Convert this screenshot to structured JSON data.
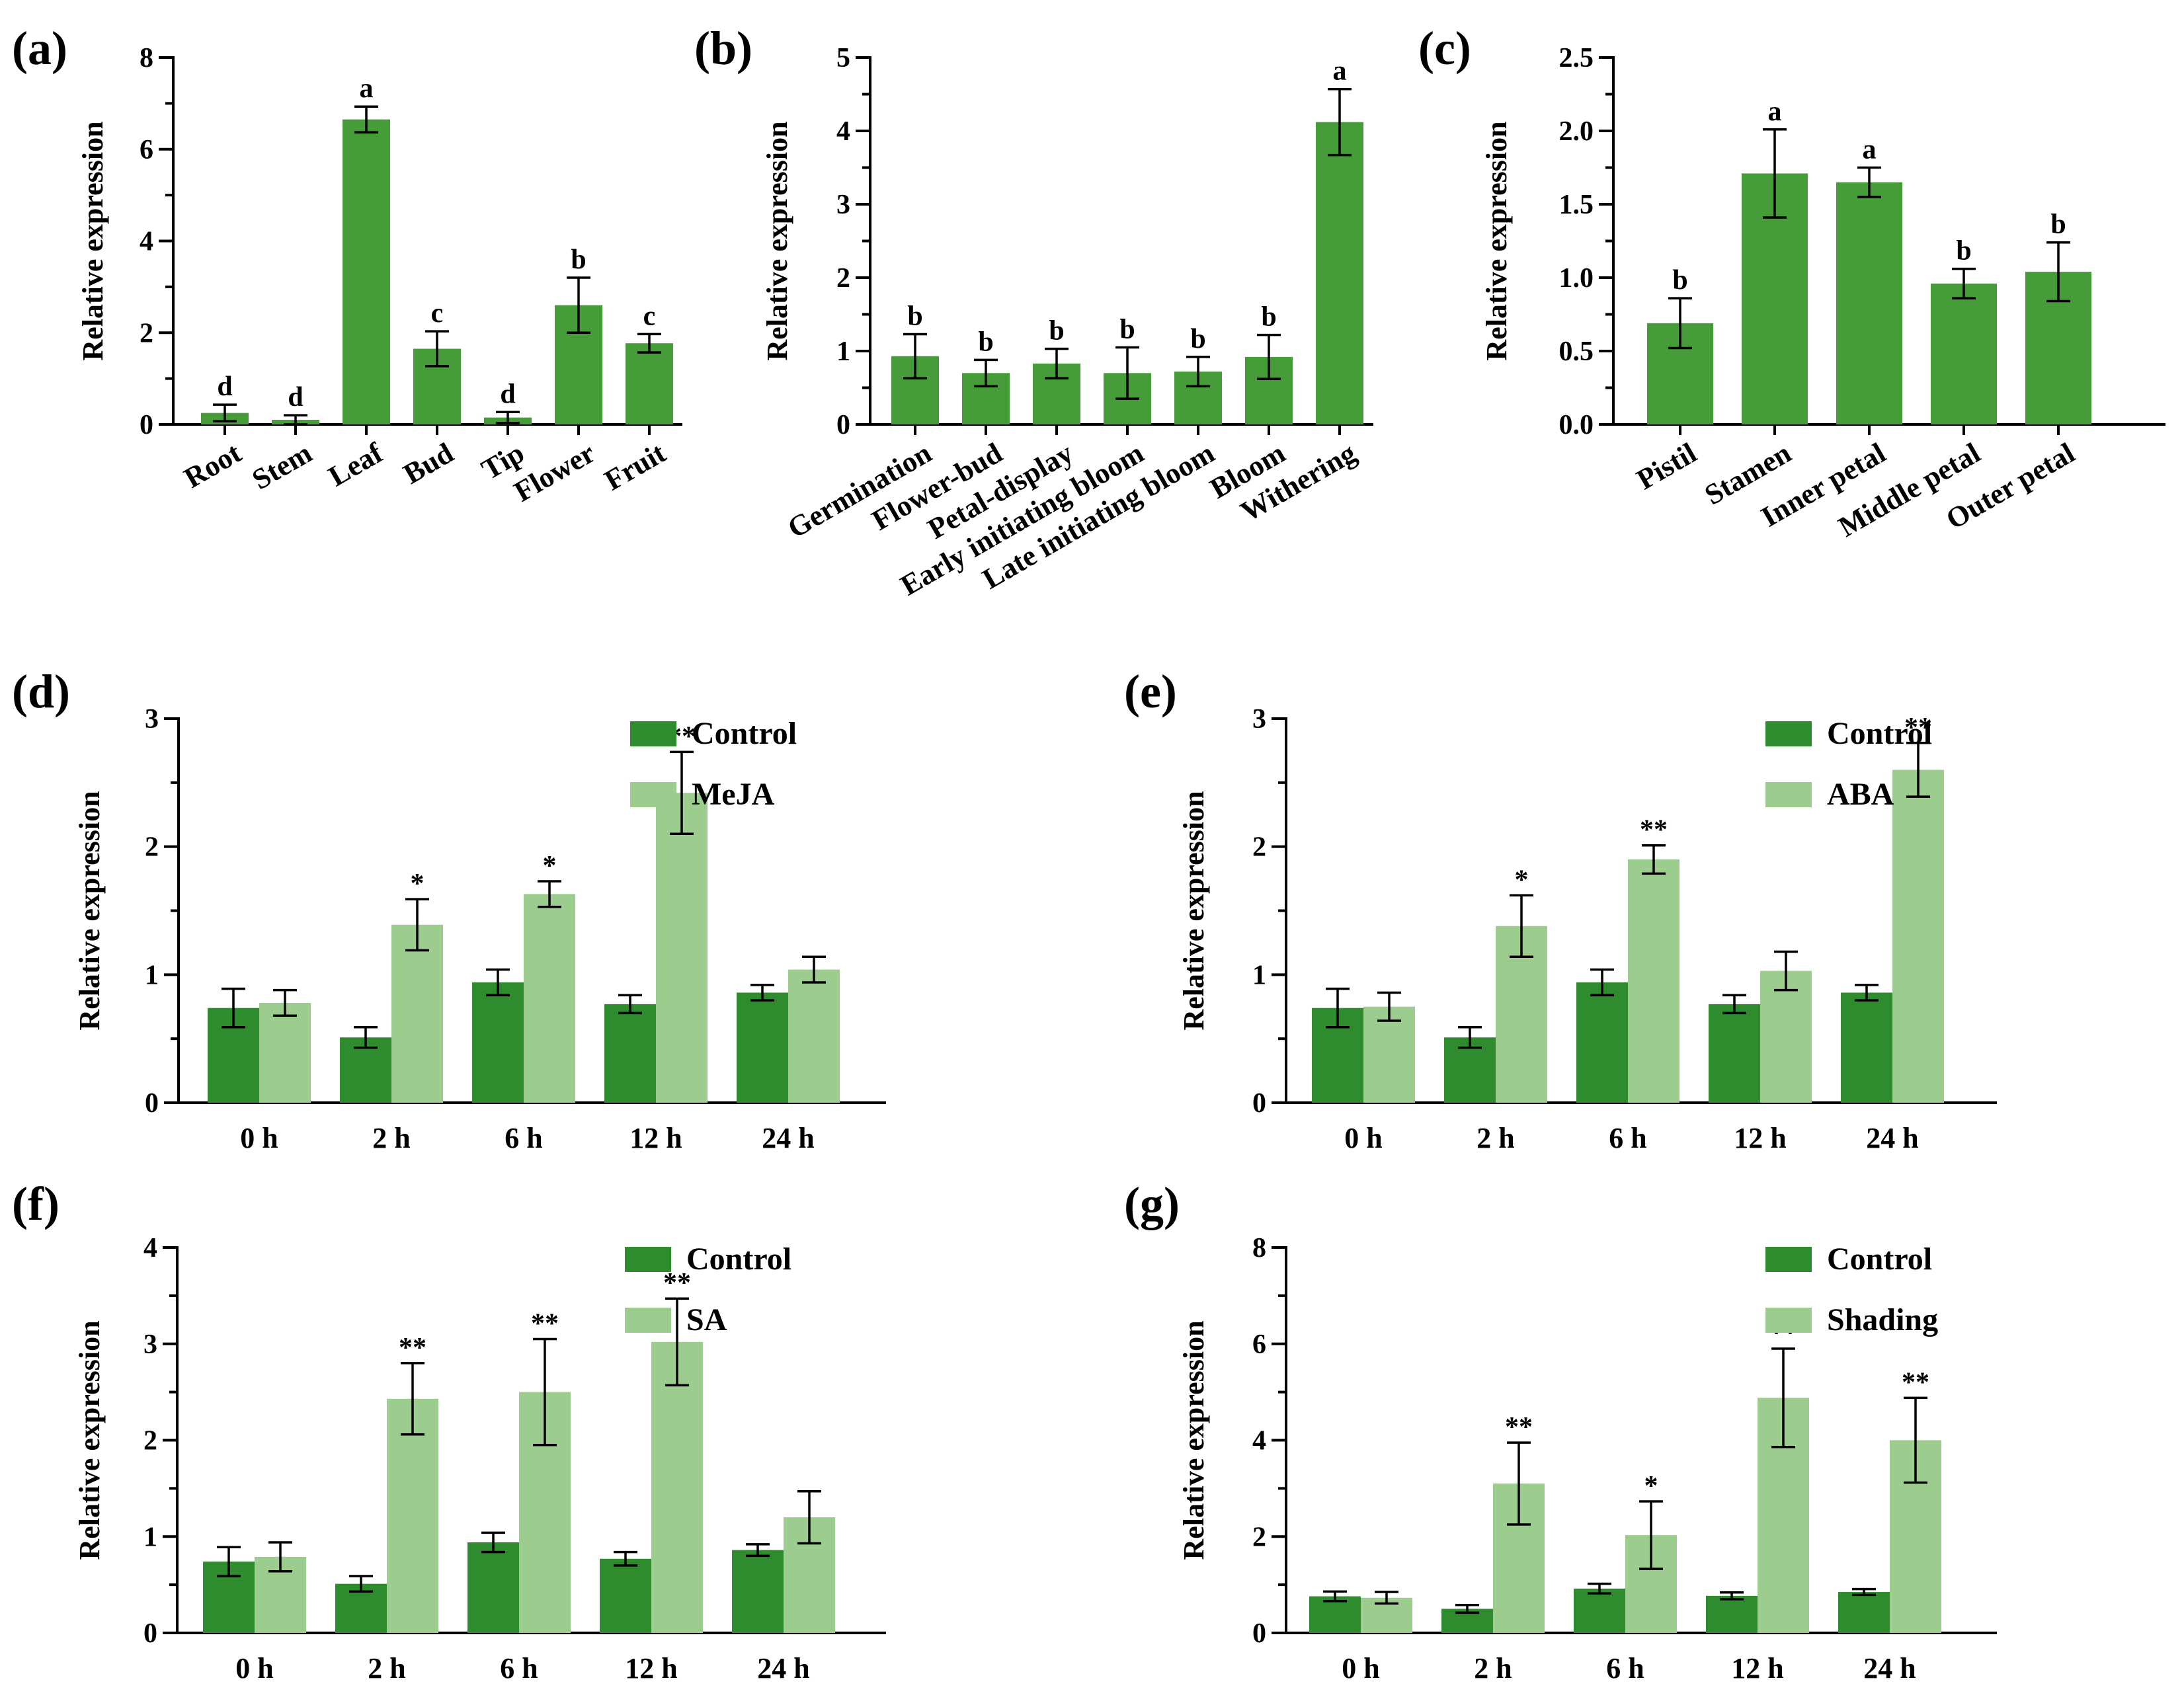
{
  "colors": {
    "control": "#2e8b2e",
    "treatment": "#9dcc8f",
    "single": "#479c3a"
  },
  "chart_data": [
    {
      "id": "a",
      "panel_label": "(a)",
      "type": "bar",
      "ylabel": "Relative expression",
      "ylim": [
        0,
        8
      ],
      "yticks": [
        "0",
        "2",
        "4",
        "6",
        "8"
      ],
      "categories": [
        "Root",
        "Stem",
        "Leaf",
        "Bud",
        "Tip",
        "Flower",
        "Fruit"
      ],
      "values": [
        0.25,
        0.1,
        6.65,
        1.65,
        0.15,
        2.6,
        1.77
      ],
      "errors": [
        0.18,
        0.1,
        0.28,
        0.38,
        0.12,
        0.6,
        0.2
      ],
      "labels": [
        "d",
        "d",
        "a",
        "c",
        "d",
        "b",
        "c"
      ]
    },
    {
      "id": "b",
      "panel_label": "(b)",
      "type": "bar",
      "ylabel": "Relative expression",
      "ylim": [
        0,
        5
      ],
      "yticks": [
        "0",
        "1",
        "2",
        "3",
        "4",
        "5"
      ],
      "categories": [
        "Germination",
        "Flower-bud",
        "Petal-display",
        "Early initiating bloom",
        "Late initiating bloom",
        "Bloom",
        "Withering"
      ],
      "values": [
        0.93,
        0.7,
        0.83,
        0.7,
        0.72,
        0.92,
        4.12
      ],
      "errors": [
        0.3,
        0.18,
        0.2,
        0.35,
        0.2,
        0.3,
        0.45
      ],
      "labels": [
        "b",
        "b",
        "b",
        "b",
        "b",
        "b",
        "a"
      ]
    },
    {
      "id": "c",
      "panel_label": "(c)",
      "type": "bar",
      "ylabel": "Relative expression",
      "ylim": [
        0,
        2.5
      ],
      "yticks": [
        "0.0",
        "0.5",
        "1.0",
        "1.5",
        "2.0",
        "2.5"
      ],
      "categories": [
        "Pistil",
        "Stamen",
        "Inner petal",
        "Middle petal",
        "Outer petal"
      ],
      "values": [
        0.69,
        1.71,
        1.65,
        0.96,
        1.04
      ],
      "errors": [
        0.17,
        0.3,
        0.1,
        0.1,
        0.2
      ],
      "labels": [
        "b",
        "a",
        "a",
        "b",
        "b"
      ]
    },
    {
      "id": "d",
      "panel_label": "(d)",
      "type": "bar",
      "ylabel": "Relative expression",
      "ylim": [
        0,
        3
      ],
      "yticks": [
        "0",
        "1",
        "2",
        "3"
      ],
      "categories": [
        "0 h",
        "2 h",
        "6 h",
        "12 h",
        "24 h"
      ],
      "series": [
        {
          "name": "Control",
          "values": [
            0.74,
            0.51,
            0.94,
            0.77,
            0.86
          ],
          "errors": [
            0.15,
            0.08,
            0.1,
            0.07,
            0.06
          ],
          "labels": [
            "",
            "",
            "",
            "",
            ""
          ]
        },
        {
          "name": "MeJA",
          "values": [
            0.78,
            1.39,
            1.63,
            2.42,
            1.04
          ],
          "errors": [
            0.1,
            0.2,
            0.1,
            0.32,
            0.1
          ],
          "labels": [
            "",
            "*",
            "*",
            "**",
            ""
          ]
        }
      ]
    },
    {
      "id": "e",
      "panel_label": "(e)",
      "type": "bar",
      "ylabel": "Relative expression",
      "ylim": [
        0,
        3
      ],
      "yticks": [
        "0",
        "1",
        "2",
        "3"
      ],
      "categories": [
        "0 h",
        "2 h",
        "6 h",
        "12 h",
        "24 h"
      ],
      "series": [
        {
          "name": "Control",
          "values": [
            0.74,
            0.51,
            0.94,
            0.77,
            0.86
          ],
          "errors": [
            0.15,
            0.08,
            0.1,
            0.07,
            0.06
          ],
          "labels": [
            "",
            "",
            "",
            "",
            ""
          ]
        },
        {
          "name": "ABA",
          "values": [
            0.75,
            1.38,
            1.9,
            1.03,
            2.6
          ],
          "errors": [
            0.11,
            0.24,
            0.11,
            0.15,
            0.21
          ],
          "labels": [
            "",
            "*",
            "**",
            "",
            "**"
          ]
        }
      ]
    },
    {
      "id": "f",
      "panel_label": "(f)",
      "type": "bar",
      "ylabel": "Relative expression",
      "ylim": [
        0,
        4
      ],
      "yticks": [
        "0",
        "1",
        "2",
        "3",
        "4"
      ],
      "categories": [
        "0 h",
        "2 h",
        "6 h",
        "12 h",
        "24 h"
      ],
      "series": [
        {
          "name": "Control",
          "values": [
            0.74,
            0.51,
            0.94,
            0.77,
            0.86
          ],
          "errors": [
            0.15,
            0.08,
            0.1,
            0.07,
            0.06
          ],
          "labels": [
            "",
            "",
            "",
            "",
            ""
          ]
        },
        {
          "name": "SA",
          "values": [
            0.79,
            2.43,
            2.5,
            3.02,
            1.2
          ],
          "errors": [
            0.15,
            0.37,
            0.55,
            0.45,
            0.27
          ],
          "labels": [
            "",
            "**",
            "**",
            "**",
            ""
          ]
        }
      ]
    },
    {
      "id": "g",
      "panel_label": "(g)",
      "type": "bar",
      "ylabel": "Relative expression",
      "ylim": [
        0,
        8
      ],
      "yticks": [
        "0",
        "2",
        "4",
        "6",
        "8"
      ],
      "categories": [
        "0 h",
        "2 h",
        "6 h",
        "12 h",
        "24 h"
      ],
      "series": [
        {
          "name": "Control",
          "values": [
            0.76,
            0.5,
            0.92,
            0.77,
            0.85
          ],
          "errors": [
            0.1,
            0.08,
            0.1,
            0.07,
            0.06
          ],
          "labels": [
            "",
            "",
            "",
            "",
            ""
          ]
        },
        {
          "name": "Shading",
          "values": [
            0.73,
            3.1,
            2.03,
            4.88,
            4.0
          ],
          "errors": [
            0.12,
            0.85,
            0.7,
            1.02,
            0.88
          ],
          "labels": [
            "",
            "**",
            "*",
            "**",
            "**"
          ]
        }
      ]
    }
  ]
}
